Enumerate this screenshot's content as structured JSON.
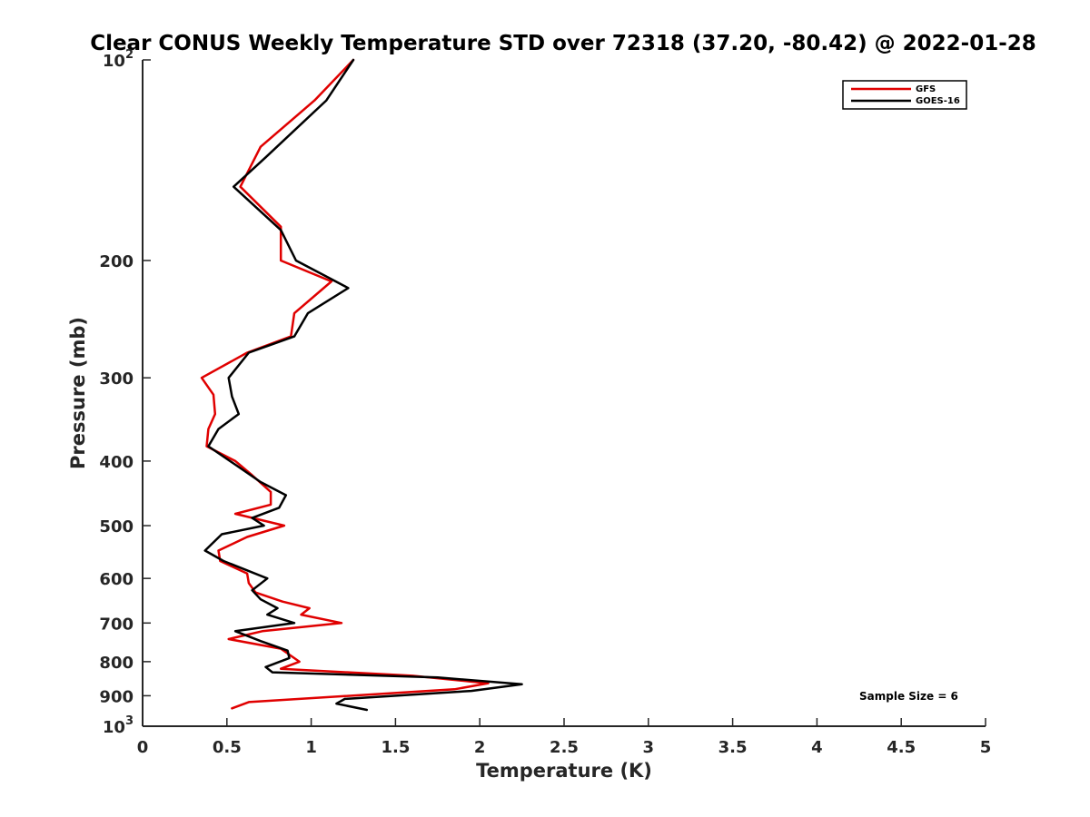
{
  "chart_data": {
    "type": "line",
    "title": "Clear CONUS Weekly Temperature STD over 72318 (37.20, -80.42) @ 2022-01-28",
    "xlabel": "Temperature (K)",
    "ylabel": "Pressure (mb)",
    "xlim": [
      0,
      5
    ],
    "ylim": [
      1000,
      100
    ],
    "yscale": "log",
    "y_reversed": true,
    "grid": false,
    "legend_position": "top-right",
    "x_ticks": [
      "0",
      "0.5",
      "1",
      "1.5",
      "2",
      "2.5",
      "3",
      "3.5",
      "4",
      "4.5",
      "5"
    ],
    "y_ticks": [
      {
        "value": 100,
        "base": "10",
        "exp": "2",
        "label": ""
      },
      {
        "value": 200,
        "base": "",
        "exp": "",
        "label": "200"
      },
      {
        "value": 300,
        "base": "",
        "exp": "",
        "label": "300"
      },
      {
        "value": 400,
        "base": "",
        "exp": "",
        "label": "400"
      },
      {
        "value": 500,
        "base": "",
        "exp": "",
        "label": "500"
      },
      {
        "value": 600,
        "base": "",
        "exp": "",
        "label": "600"
      },
      {
        "value": 700,
        "base": "",
        "exp": "",
        "label": "700"
      },
      {
        "value": 800,
        "base": "",
        "exp": "",
        "label": "800"
      },
      {
        "value": 900,
        "base": "",
        "exp": "",
        "label": "900"
      },
      {
        "value": 1000,
        "base": "10",
        "exp": "3",
        "label": ""
      }
    ],
    "series": [
      {
        "name": "GFS",
        "color": "#e00000",
        "points": [
          {
            "x": 1.25,
            "y": 100
          },
          {
            "x": 1.02,
            "y": 115
          },
          {
            "x": 0.7,
            "y": 135
          },
          {
            "x": 0.58,
            "y": 155
          },
          {
            "x": 0.82,
            "y": 178
          },
          {
            "x": 0.82,
            "y": 200
          },
          {
            "x": 1.12,
            "y": 215
          },
          {
            "x": 0.9,
            "y": 240
          },
          {
            "x": 0.88,
            "y": 260
          },
          {
            "x": 0.62,
            "y": 275
          },
          {
            "x": 0.35,
            "y": 300
          },
          {
            "x": 0.42,
            "y": 318
          },
          {
            "x": 0.43,
            "y": 340
          },
          {
            "x": 0.39,
            "y": 358
          },
          {
            "x": 0.38,
            "y": 380
          },
          {
            "x": 0.55,
            "y": 400
          },
          {
            "x": 0.65,
            "y": 420
          },
          {
            "x": 0.76,
            "y": 445
          },
          {
            "x": 0.76,
            "y": 465
          },
          {
            "x": 0.55,
            "y": 480
          },
          {
            "x": 0.84,
            "y": 500
          },
          {
            "x": 0.62,
            "y": 520
          },
          {
            "x": 0.45,
            "y": 545
          },
          {
            "x": 0.46,
            "y": 565
          },
          {
            "x": 0.62,
            "y": 590
          },
          {
            "x": 0.63,
            "y": 610
          },
          {
            "x": 0.67,
            "y": 630
          },
          {
            "x": 0.83,
            "y": 650
          },
          {
            "x": 0.99,
            "y": 665
          },
          {
            "x": 0.94,
            "y": 680
          },
          {
            "x": 1.18,
            "y": 700
          },
          {
            "x": 0.71,
            "y": 720
          },
          {
            "x": 0.51,
            "y": 740
          },
          {
            "x": 0.82,
            "y": 765
          },
          {
            "x": 0.93,
            "y": 800
          },
          {
            "x": 0.82,
            "y": 820
          },
          {
            "x": 1.6,
            "y": 840
          },
          {
            "x": 2.05,
            "y": 862
          },
          {
            "x": 1.85,
            "y": 880
          },
          {
            "x": 0.63,
            "y": 920
          },
          {
            "x": 0.53,
            "y": 940
          }
        ]
      },
      {
        "name": "GOES-16",
        "color": "#000000",
        "points": [
          {
            "x": 1.25,
            "y": 100
          },
          {
            "x": 1.09,
            "y": 115
          },
          {
            "x": 0.73,
            "y": 140
          },
          {
            "x": 0.54,
            "y": 155
          },
          {
            "x": 0.82,
            "y": 180
          },
          {
            "x": 0.91,
            "y": 200
          },
          {
            "x": 1.22,
            "y": 220
          },
          {
            "x": 0.98,
            "y": 240
          },
          {
            "x": 0.9,
            "y": 260
          },
          {
            "x": 0.63,
            "y": 275
          },
          {
            "x": 0.51,
            "y": 300
          },
          {
            "x": 0.53,
            "y": 320
          },
          {
            "x": 0.57,
            "y": 340
          },
          {
            "x": 0.45,
            "y": 358
          },
          {
            "x": 0.39,
            "y": 380
          },
          {
            "x": 0.55,
            "y": 405
          },
          {
            "x": 0.7,
            "y": 430
          },
          {
            "x": 0.85,
            "y": 450
          },
          {
            "x": 0.81,
            "y": 470
          },
          {
            "x": 0.65,
            "y": 487
          },
          {
            "x": 0.72,
            "y": 500
          },
          {
            "x": 0.47,
            "y": 515
          },
          {
            "x": 0.37,
            "y": 545
          },
          {
            "x": 0.48,
            "y": 565
          },
          {
            "x": 0.74,
            "y": 600
          },
          {
            "x": 0.65,
            "y": 625
          },
          {
            "x": 0.7,
            "y": 645
          },
          {
            "x": 0.8,
            "y": 665
          },
          {
            "x": 0.74,
            "y": 680
          },
          {
            "x": 0.9,
            "y": 700
          },
          {
            "x": 0.55,
            "y": 720
          },
          {
            "x": 0.7,
            "y": 745
          },
          {
            "x": 0.86,
            "y": 770
          },
          {
            "x": 0.87,
            "y": 790
          },
          {
            "x": 0.73,
            "y": 815
          },
          {
            "x": 0.77,
            "y": 830
          },
          {
            "x": 1.75,
            "y": 845
          },
          {
            "x": 2.25,
            "y": 865
          },
          {
            "x": 1.95,
            "y": 885
          },
          {
            "x": 1.2,
            "y": 910
          },
          {
            "x": 1.15,
            "y": 925
          },
          {
            "x": 1.33,
            "y": 945
          }
        ]
      }
    ],
    "annotations": [
      {
        "text": "Sample Size = 6",
        "position": "bottom-right"
      }
    ]
  }
}
